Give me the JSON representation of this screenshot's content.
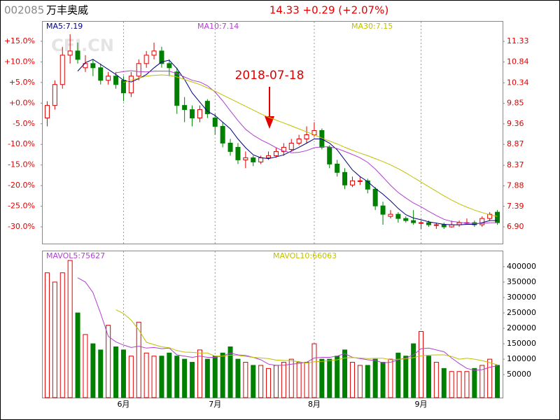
{
  "header": {
    "code": "002085",
    "name": "万丰奥威",
    "quote": "14.33 +0.29 (+2.07%)",
    "watermark": "CFI.CN"
  },
  "chart_data": [
    {
      "type": "candlestick",
      "annotation": "2018-07-18",
      "up_color": "#e00000",
      "down_color": "#008000",
      "open": [
        9.5,
        9.8,
        10.3,
        11.0,
        11.1,
        10.7,
        10.8,
        10.7,
        10.4,
        10.5,
        10.4,
        10.1,
        10.5,
        10.8,
        11.0,
        11.1,
        10.8,
        10.6,
        9.8,
        9.7,
        9.5,
        9.9,
        9.5,
        9.3,
        8.9,
        8.8,
        8.5,
        8.55,
        8.45,
        8.55,
        8.6,
        8.7,
        8.75,
        8.9,
        9.0,
        9.1,
        9.2,
        8.8,
        8.4,
        8.2,
        7.9,
        8.0,
        8.0,
        7.8,
        7.4,
        7.15,
        7.2,
        7.1,
        7.05,
        7.0,
        7.0,
        6.95,
        6.95,
        6.9,
        6.95,
        7.0,
        7.0,
        6.95,
        7.1,
        7.25
      ],
      "high": [
        9.9,
        10.4,
        11.2,
        11.5,
        11.3,
        11.0,
        10.9,
        10.8,
        10.6,
        10.6,
        10.5,
        10.6,
        10.9,
        11.1,
        11.3,
        11.2,
        10.9,
        10.7,
        10.0,
        9.8,
        9.8,
        9.95,
        9.6,
        9.4,
        9.0,
        8.9,
        8.7,
        8.6,
        8.6,
        8.7,
        8.8,
        8.9,
        9.0,
        9.1,
        9.3,
        9.4,
        9.25,
        8.85,
        8.5,
        8.3,
        8.1,
        8.1,
        8.05,
        7.85,
        7.5,
        7.3,
        7.25,
        7.15,
        7.3,
        7.05,
        7.05,
        7.0,
        7.0,
        7.05,
        7.05,
        7.1,
        7.05,
        7.15,
        7.25,
        7.3
      ],
      "low": [
        9.3,
        9.7,
        10.2,
        10.8,
        10.8,
        10.6,
        10.5,
        10.3,
        10.3,
        10.2,
        9.9,
        10.0,
        10.4,
        10.7,
        10.9,
        10.7,
        10.5,
        9.6,
        9.4,
        9.3,
        9.4,
        9.5,
        9.1,
        8.8,
        8.6,
        8.4,
        8.3,
        8.35,
        8.4,
        8.5,
        8.55,
        8.6,
        8.7,
        8.85,
        8.9,
        9.05,
        8.75,
        8.3,
        8.1,
        7.8,
        7.85,
        7.9,
        7.7,
        7.3,
        6.95,
        7.1,
        7.0,
        7.0,
        6.95,
        6.85,
        6.9,
        6.85,
        6.85,
        6.88,
        6.9,
        6.95,
        6.9,
        6.9,
        7.05,
        6.95
      ],
      "close": [
        9.8,
        10.3,
        11.0,
        11.1,
        10.9,
        10.8,
        10.7,
        10.4,
        10.5,
        10.3,
        10.1,
        10.5,
        10.8,
        11.0,
        11.1,
        10.8,
        10.7,
        9.8,
        9.7,
        9.5,
        9.7,
        9.6,
        9.3,
        8.9,
        8.7,
        8.5,
        8.55,
        8.45,
        8.55,
        8.6,
        8.7,
        8.8,
        8.9,
        9.0,
        9.1,
        9.2,
        8.8,
        8.4,
        8.2,
        7.9,
        8.0,
        8.0,
        7.8,
        7.4,
        7.2,
        7.2,
        7.1,
        7.05,
        7.0,
        7.0,
        6.95,
        6.95,
        6.9,
        6.95,
        7.0,
        7.0,
        6.95,
        7.1,
        7.2,
        7.0
      ],
      "series": [
        {
          "name": "MA5:7.19",
          "color": "#000080",
          "values": [
            null,
            null,
            null,
            null,
            10.62,
            10.82,
            10.9,
            10.78,
            10.66,
            10.54,
            10.4,
            10.36,
            10.44,
            10.54,
            10.7,
            10.84,
            10.88,
            10.68,
            10.42,
            10.1,
            9.88,
            9.66,
            9.56,
            9.4,
            9.24,
            9.0,
            8.79,
            8.62,
            8.55,
            8.53,
            8.57,
            8.62,
            8.71,
            8.8,
            8.9,
            9.0,
            9.0,
            8.9,
            8.74,
            8.5,
            8.26,
            8.1,
            7.98,
            7.82,
            7.68,
            7.52,
            7.34,
            7.19,
            7.11,
            7.07,
            7.02,
            6.99,
            6.96,
            6.95,
            6.95,
            6.96,
            6.96,
            7.0,
            7.05,
            7.05
          ]
        },
        {
          "name": "MA10:7.14",
          "color": "#b040d0",
          "values": [
            null,
            null,
            null,
            null,
            null,
            null,
            null,
            null,
            null,
            10.58,
            10.61,
            10.63,
            10.61,
            10.6,
            10.62,
            10.62,
            10.62,
            10.56,
            10.48,
            10.4,
            10.36,
            10.27,
            10.12,
            9.91,
            9.67,
            9.44,
            9.23,
            9.09,
            8.98,
            8.89,
            8.79,
            8.71,
            8.67,
            8.68,
            8.72,
            8.79,
            8.81,
            8.81,
            8.77,
            8.7,
            8.63,
            8.55,
            8.44,
            8.28,
            8.09,
            7.89,
            7.72,
            7.59,
            7.47,
            7.38,
            7.27,
            7.17,
            7.08,
            7.03,
            7.01,
            6.99,
            6.98,
            6.98,
            7.0,
            7.0
          ]
        },
        {
          "name": "MA30:7.15",
          "color": "#c0c000",
          "values": [
            null,
            null,
            null,
            null,
            null,
            null,
            null,
            null,
            null,
            null,
            10.35,
            10.4,
            10.45,
            10.5,
            10.52,
            10.53,
            10.52,
            10.48,
            10.42,
            10.36,
            10.3,
            10.22,
            10.14,
            10.05,
            9.96,
            9.87,
            9.78,
            9.69,
            9.6,
            9.52,
            9.45,
            9.38,
            9.31,
            9.24,
            9.17,
            9.1,
            9.02,
            8.95,
            8.88,
            8.8,
            8.73,
            8.66,
            8.6,
            8.53,
            8.46,
            8.38,
            8.29,
            8.19,
            8.08,
            7.97,
            7.86,
            7.75,
            7.64,
            7.54,
            7.45,
            7.37,
            7.3,
            7.24,
            7.19,
            7.15
          ]
        }
      ],
      "ylim": [
        6.5,
        11.8
      ],
      "yticks": [
        11.33,
        10.84,
        10.34,
        9.85,
        9.36,
        8.87,
        8.37,
        7.88,
        7.39,
        {
          "value": 6.9,
          "label": "6.90"
        }
      ],
      "y2lim": [
        -34.06,
        19.74
      ],
      "y2ticks": [
        {
          "value": 15,
          "label": "+15.0%"
        },
        {
          "value": 10,
          "label": "+10.0%"
        },
        {
          "value": 5,
          "label": "+5.0%"
        },
        {
          "value": 0,
          "label": "+0.0%"
        },
        {
          "value": -5,
          "label": "-5.0%"
        },
        {
          "value": -10,
          "label": "-10.0%"
        },
        {
          "value": -15,
          "label": "-15.0%"
        },
        {
          "value": -20,
          "label": "-20.0%"
        },
        {
          "value": -25,
          "label": "-25.0%"
        },
        {
          "value": -30,
          "label": "-30.0%"
        }
      ],
      "xticks": [
        {
          "value": 10,
          "label": "6月"
        },
        {
          "value": 22,
          "label": "7月"
        },
        {
          "value": 35,
          "label": "8月"
        },
        {
          "value": 49,
          "label": "9月"
        }
      ]
    },
    {
      "type": "bar",
      "values": [
        380000,
        350000,
        380000,
        420000,
        250000,
        180000,
        150000,
        130000,
        210000,
        140000,
        130000,
        110000,
        220000,
        120000,
        110000,
        110000,
        120000,
        110000,
        100000,
        90000,
        130000,
        100000,
        110000,
        120000,
        140000,
        100000,
        90000,
        80000,
        80000,
        70000,
        80000,
        90000,
        100000,
        90000,
        90000,
        150000,
        100000,
        100000,
        110000,
        130000,
        90000,
        80000,
        80000,
        100000,
        90000,
        100000,
        120000,
        110000,
        150000,
        190000,
        110000,
        90000,
        70000,
        60000,
        60000,
        60000,
        70000,
        80000,
        100000,
        80000
      ],
      "series": [
        {
          "name": "MAVOL5:75627",
          "color": "#b040d0",
          "values": [
            null,
            null,
            null,
            null,
            364000,
            350000,
            316000,
            248000,
            174000,
            156000,
            146000,
            138000,
            142000,
            136000,
            138000,
            134000,
            136000,
            114000,
            110000,
            106000,
            110000,
            106000,
            106000,
            110000,
            120000,
            114000,
            112000,
            106000,
            98000,
            84000,
            80000,
            80000,
            84000,
            86000,
            90000,
            104000,
            106000,
            106000,
            110000,
            118000,
            106000,
            102000,
            98000,
            96000,
            88000,
            90000,
            98000,
            104000,
            114000,
            134000,
            136000,
            130000,
            124000,
            104000,
            86000,
            70000,
            64000,
            66000,
            74000,
            78000
          ]
        },
        {
          "name": "MAVOL10:66063",
          "color": "#c0c000",
          "values": [
            null,
            null,
            null,
            null,
            null,
            null,
            null,
            null,
            null,
            260000,
            248000,
            227000,
            195000,
            155000,
            147000,
            140000,
            137000,
            128000,
            123000,
            122000,
            120000,
            120000,
            110000,
            110000,
            113000,
            112000,
            109000,
            106000,
            104000,
            102000,
            97000,
            96000,
            95000,
            92000,
            87000,
            92000,
            93000,
            95000,
            98000,
            104000,
            105000,
            104000,
            102000,
            103000,
            103000,
            98000,
            100000,
            101000,
            105000,
            111000,
            113000,
            114000,
            114000,
            109000,
            100000,
            103000,
            100000,
            95000,
            89000,
            82000
          ]
        }
      ],
      "ylim": [
        -24500,
        449700
      ],
      "yticks": [
        400000,
        350000,
        300000,
        250000,
        200000,
        150000,
        100000,
        50000
      ]
    }
  ]
}
